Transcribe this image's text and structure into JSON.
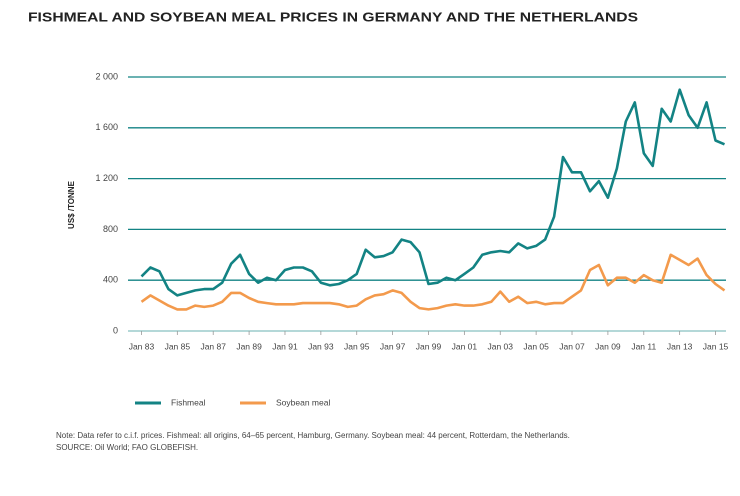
{
  "chart_data": {
    "type": "line",
    "title": "FISHMEAL AND SOYBEAN MEAL PRICES IN GERMANY AND THE NETHERLANDS",
    "y_label": "US$ /TONNE",
    "note": "Note: Data refer to c.i.f. prices. Fishmeal: all origins, 64–65 percent, Hamburg, Germany. Soybean meal: 44 percent, Rotterdam, the Netherlands.",
    "source": "SOURCE: Oil World; FAO GLOBEFISH.",
    "x": [
      "1983-01",
      "1983-07",
      "1984-01",
      "1984-07",
      "1985-01",
      "1985-07",
      "1986-01",
      "1986-07",
      "1987-01",
      "1987-07",
      "1988-01",
      "1988-07",
      "1989-01",
      "1989-07",
      "1990-01",
      "1990-07",
      "1991-01",
      "1991-07",
      "1992-01",
      "1992-07",
      "1993-01",
      "1993-07",
      "1994-01",
      "1994-07",
      "1995-01",
      "1995-07",
      "1996-01",
      "1996-07",
      "1997-01",
      "1997-07",
      "1998-01",
      "1998-07",
      "1999-01",
      "1999-07",
      "2000-01",
      "2000-07",
      "2001-01",
      "2001-07",
      "2002-01",
      "2002-07",
      "2003-01",
      "2003-07",
      "2004-01",
      "2004-07",
      "2005-01",
      "2005-07",
      "2006-01",
      "2006-07",
      "2007-01",
      "2007-07",
      "2008-01",
      "2008-07",
      "2009-01",
      "2009-07",
      "2010-01",
      "2010-07",
      "2011-01",
      "2011-07",
      "2012-01",
      "2012-07",
      "2013-01",
      "2013-07",
      "2014-01",
      "2014-07",
      "2015-01",
      "2015-07"
    ],
    "series": [
      {
        "name": "Fishmeal",
        "color": "#138384",
        "values": [
          430,
          500,
          470,
          330,
          280,
          300,
          320,
          330,
          330,
          380,
          530,
          600,
          450,
          380,
          420,
          400,
          480,
          500,
          500,
          470,
          380,
          360,
          370,
          400,
          450,
          640,
          580,
          590,
          620,
          720,
          700,
          620,
          370,
          380,
          420,
          400,
          450,
          500,
          600,
          620,
          630,
          620,
          690,
          650,
          670,
          720,
          900,
          1370,
          1250,
          1250,
          1100,
          1180,
          1050,
          1280,
          1650,
          1800,
          1400,
          1300,
          1750,
          1650,
          1900,
          1700,
          1600,
          1800,
          1500,
          1470
        ]
      },
      {
        "name": "Soybean meal",
        "color": "#f39a4c",
        "values": [
          230,
          280,
          240,
          200,
          170,
          170,
          200,
          190,
          200,
          230,
          300,
          300,
          260,
          230,
          220,
          210,
          210,
          210,
          220,
          220,
          220,
          220,
          210,
          190,
          200,
          250,
          280,
          290,
          320,
          300,
          230,
          180,
          170,
          180,
          200,
          210,
          200,
          200,
          210,
          230,
          310,
          230,
          270,
          220,
          230,
          210,
          220,
          220,
          270,
          320,
          480,
          520,
          360,
          420,
          420,
          380,
          440,
          400,
          380,
          600,
          560,
          520,
          570,
          440,
          370,
          320
        ]
      }
    ],
    "xlim": [
      "1982-04",
      "2015-08"
    ],
    "xticks": [
      {
        "value": "1983-01",
        "label": "Jan 83"
      },
      {
        "value": "1985-01",
        "label": "Jan 85"
      },
      {
        "value": "1987-01",
        "label": "Jan 87"
      },
      {
        "value": "1989-01",
        "label": "Jan 89"
      },
      {
        "value": "1991-01",
        "label": "Jan 91"
      },
      {
        "value": "1993-01",
        "label": "Jan 93"
      },
      {
        "value": "1995-01",
        "label": "Jan 95"
      },
      {
        "value": "1997-01",
        "label": "Jan 97"
      },
      {
        "value": "1999-01",
        "label": "Jan 99"
      },
      {
        "value": "2001-01",
        "label": "Jan 01"
      },
      {
        "value": "2003-01",
        "label": "Jan 03"
      },
      {
        "value": "2005-01",
        "label": "Jan 05"
      },
      {
        "value": "2007-01",
        "label": "Jan 07"
      },
      {
        "value": "2009-01",
        "label": "Jan 09"
      },
      {
        "value": "2011-01",
        "label": "Jan 11"
      },
      {
        "value": "2013-01",
        "label": "Jan 13"
      },
      {
        "value": "2015-01",
        "label": "Jan 15"
      }
    ],
    "ylim": [
      0,
      2000
    ],
    "yticks": [
      0,
      400,
      800,
      {
        "value": 1200,
        "label": "1 200"
      },
      {
        "value": 1600,
        "label": "1 600"
      },
      {
        "value": 2000,
        "label": "2 000"
      }
    ],
    "grid": true,
    "grid_color": "#138384",
    "legend": "bottom left"
  }
}
